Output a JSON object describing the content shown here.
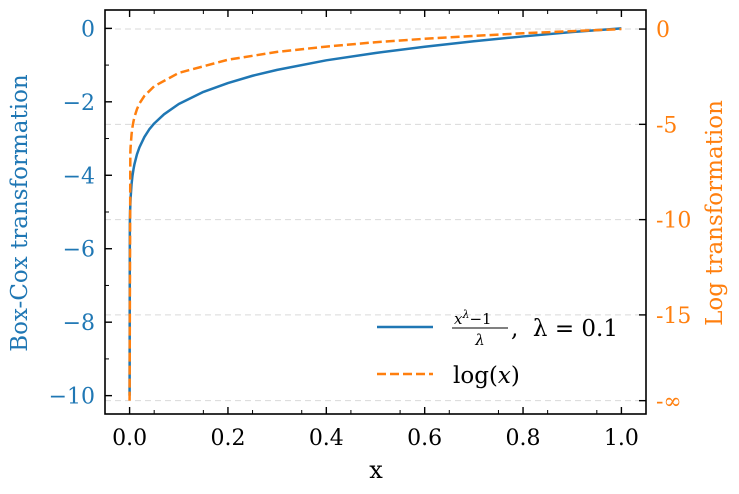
{
  "chart_data": {
    "type": "line",
    "xlabel": "x",
    "xlim": [
      -0.05,
      1.05
    ],
    "x_ticks": [
      0.0,
      0.2,
      0.4,
      0.6,
      0.8,
      1.0
    ],
    "x_tick_labels": [
      "0.0",
      "0.2",
      "0.4",
      "0.6",
      "0.8",
      "1.0"
    ],
    "left_axis": {
      "label": "Box-Cox transformation",
      "color": "#1f77b4",
      "ylim": [
        -10.5,
        0.5
      ],
      "ticks": [
        0,
        -2,
        -4,
        -6,
        -8,
        -10
      ],
      "tick_labels": [
        "0",
        "−2",
        "−4",
        "−6",
        "−8",
        "−10"
      ]
    },
    "right_axis": {
      "label": "Log transformation",
      "color": "#ff7f0e",
      "ylim": [
        -20.2,
        1.0
      ],
      "ticks": [
        0,
        -5,
        -10,
        -15,
        -19.5
      ],
      "tick_labels": [
        "0",
        "-5",
        "-10",
        "-15",
        "-∞"
      ]
    },
    "grid": "horizontal dashed",
    "legend_position": "lower-right",
    "legend": [
      {
        "label_num": "x",
        "label_sup": "λ",
        "label_num_tail": "−1",
        "label_den": "λ",
        "label_tail": ",  λ = 0.1",
        "style": "solid",
        "color": "#1f77b4"
      },
      {
        "label_pre": "log(",
        "label_var": "x",
        "label_post": ")",
        "style": "dashed",
        "color": "#ff7f0e"
      }
    ],
    "series": [
      {
        "formula": "(x^0.1 - 1)/0.1",
        "axis": "left",
        "color": "#1f77b4",
        "style": "solid",
        "x": [
          0.0,
          0.0005,
          0.001,
          0.002,
          0.004,
          0.006,
          0.008,
          0.01,
          0.015,
          0.02,
          0.03,
          0.04,
          0.05,
          0.07,
          0.1,
          0.15,
          0.2,
          0.25,
          0.3,
          0.4,
          0.5,
          0.6,
          0.7,
          0.8,
          0.9,
          1.0
        ],
        "y": [
          -10.0,
          -5.33,
          -4.99,
          -4.63,
          -4.24,
          -4.0,
          -3.83,
          -3.69,
          -3.43,
          -3.24,
          -2.96,
          -2.75,
          -2.59,
          -2.34,
          -2.06,
          -1.73,
          -1.49,
          -1.29,
          -1.13,
          -0.87,
          -0.67,
          -0.5,
          -0.35,
          -0.22,
          -0.1,
          0.0
        ]
      },
      {
        "formula": "log(x)",
        "axis": "right",
        "color": "#ff7f0e",
        "style": "dashed",
        "x": [
          0.0,
          0.0015,
          0.002,
          0.004,
          0.006,
          0.008,
          0.01,
          0.015,
          0.02,
          0.03,
          0.05,
          0.1,
          0.2,
          0.3,
          0.4,
          0.5,
          0.6,
          0.7,
          0.8,
          0.9,
          1.0
        ],
        "y": [
          -19.5,
          -6.5,
          -6.21,
          -5.52,
          -5.12,
          -4.83,
          -4.61,
          -4.2,
          -3.91,
          -3.51,
          -3.0,
          -2.3,
          -1.61,
          -1.2,
          -0.92,
          -0.69,
          -0.51,
          -0.36,
          -0.22,
          -0.11,
          0.0
        ]
      }
    ]
  }
}
